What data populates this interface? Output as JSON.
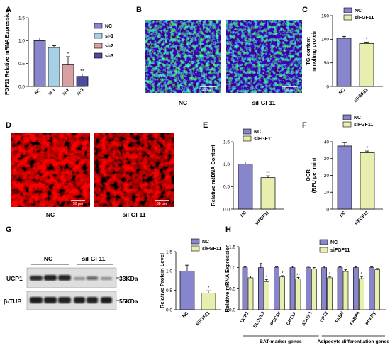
{
  "panel_letters": [
    "A",
    "B",
    "C",
    "D",
    "E",
    "F",
    "G",
    "H"
  ],
  "colors": {
    "nc": "#8785cc",
    "si1": "#a7d0e5",
    "si2": "#d9a0a3",
    "si3": "#4c4b9e",
    "sifgf11": "#e8eeae"
  },
  "micro": {
    "b_nc_label": "NC",
    "b_si_label": "siFGF11",
    "d_nc_label": "NC",
    "d_si_label": "siFGF11",
    "b_scale": "100 μm",
    "d_scale": "50 μm"
  },
  "western": {
    "group_nc": "NC",
    "group_si": "siFGF11",
    "band1_name": "UCP1",
    "band1_kda": "33KDa",
    "band2_name": "β-TUB",
    "band2_kda": "55KDa"
  },
  "chart_data": [
    {
      "id": "A",
      "type": "bar",
      "categories": [
        "NC",
        "si-1",
        "si-2",
        "si-3"
      ],
      "values": [
        1.0,
        0.85,
        0.47,
        0.22
      ],
      "errors": [
        0.06,
        0.04,
        0.18,
        0.05
      ],
      "significance": [
        "",
        "",
        "*",
        "**"
      ],
      "ylabel": "FGF11 Relative mRNA Expression",
      "ylim": [
        0,
        1.5
      ],
      "yticks": [
        "0.0",
        "0.5",
        "1.0",
        "1.5"
      ],
      "legend": [
        "NC",
        "si-1",
        "si-2",
        "si-3"
      ]
    },
    {
      "id": "C",
      "type": "bar",
      "categories": [
        "NC",
        "siFGF11"
      ],
      "values": [
        102,
        91
      ],
      "errors": [
        4,
        3
      ],
      "significance": [
        "",
        "*"
      ],
      "ylabel": "TG content",
      "ylabel2": "mmol/mg protein",
      "ylim": [
        0,
        150
      ],
      "yticks": [
        "0",
        "50",
        "100",
        "150"
      ],
      "legend": [
        "NC",
        "siFGF11"
      ]
    },
    {
      "id": "E",
      "type": "bar",
      "categories": [
        "NC",
        "siFGF11"
      ],
      "values": [
        1.0,
        0.7
      ],
      "errors": [
        0.05,
        0.04
      ],
      "significance": [
        "",
        "**"
      ],
      "ylabel": "Relative mtDNA Content",
      "ylim": [
        0,
        1.5
      ],
      "yticks": [
        "0.0",
        "0.5",
        "1.0",
        "1.5"
      ],
      "legend": [
        "NC",
        "siFGF11"
      ]
    },
    {
      "id": "F",
      "type": "bar",
      "categories": [
        "NC",
        "siFGF11"
      ],
      "values": [
        37.5,
        33.5
      ],
      "errors": [
        2.0,
        1.0
      ],
      "significance": [
        "",
        "*"
      ],
      "ylabel": "OCR",
      "ylabel2": "(RFU per min)",
      "ylim": [
        0,
        40
      ],
      "yticks": [
        "0",
        "10",
        "20",
        "30",
        "40"
      ],
      "legend": [
        "NC",
        "siFGF11"
      ]
    },
    {
      "id": "G",
      "type": "bar",
      "categories": [
        "NC",
        "siFGF11"
      ],
      "values": [
        1.0,
        0.43
      ],
      "errors": [
        0.15,
        0.06
      ],
      "significance": [
        "",
        "*"
      ],
      "ylabel": "Relative Protein Level",
      "ylim": [
        0,
        1.5
      ],
      "yticks": [
        "0.0",
        "0.5",
        "1.0",
        "1.5"
      ],
      "legend": [
        "NC",
        "siFGF11"
      ]
    },
    {
      "id": "H",
      "type": "bar",
      "categories": [
        "UCP1",
        "ELOVL3",
        "PGC1α",
        "CPT1A",
        "ACOX1",
        "CPT2",
        "FASN",
        "FABP4",
        "PPARγ"
      ],
      "series": [
        {
          "name": "NC",
          "values": [
            1.0,
            1.0,
            1.0,
            1.0,
            1.0,
            1.0,
            1.0,
            1.0,
            1.0
          ],
          "errors": [
            0.02,
            0.1,
            0.02,
            0.03,
            0.03,
            0.03,
            0.02,
            0.02,
            0.02
          ]
        },
        {
          "name": "siFGF11",
          "values": [
            0.76,
            0.67,
            0.78,
            0.73,
            0.97,
            0.76,
            0.91,
            0.74,
            0.95
          ],
          "errors": [
            0.04,
            0.05,
            0.03,
            0.04,
            0.03,
            0.03,
            0.04,
            0.05,
            0.03
          ]
        }
      ],
      "significance": [
        "",
        "*",
        "*",
        "**",
        "",
        "*",
        "",
        "*",
        ""
      ],
      "ylabel": "Relative mRNA Expression",
      "ylim": [
        0,
        1.5
      ],
      "yticks": [
        "0.0",
        "0.5",
        "1.0",
        "1.5"
      ],
      "groups": [
        "BAT-marker genes",
        "Adipocyte differentiation genes"
      ],
      "legend": [
        "NC",
        "siFGF11"
      ]
    }
  ]
}
